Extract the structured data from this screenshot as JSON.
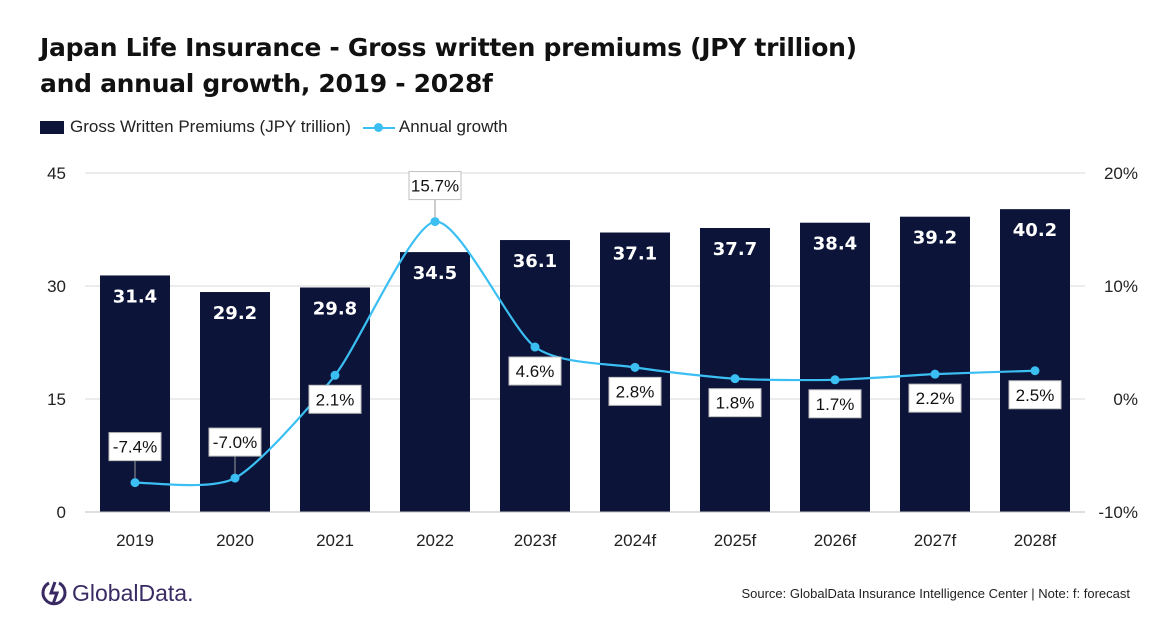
{
  "title_line1": "Japan Life Insurance - Gross written premiums (JPY trillion)",
  "title_line2": "and annual growth, 2019 - 2028f",
  "source": "Source: GlobalData Insurance Intelligence Center | Note: f: forecast",
  "logo_text": "GlobalData.",
  "colors": {
    "bar": "#0c1539",
    "line": "#3bbff3",
    "grid": "#d9d9d9"
  },
  "chart_data": {
    "type": "bar+line",
    "categories": [
      "2019",
      "2020",
      "2021",
      "2022",
      "2023f",
      "2024f",
      "2025f",
      "2026f",
      "2027f",
      "2028f"
    ],
    "series": [
      {
        "name": "Gross Written Premiums (JPY trillion)",
        "type": "bar",
        "axis": "left",
        "values": [
          31.4,
          29.2,
          29.8,
          34.5,
          36.1,
          37.1,
          37.7,
          38.4,
          39.2,
          40.2
        ],
        "labels": [
          "31.4",
          "29.2",
          "29.8",
          "34.5",
          "36.1",
          "37.1",
          "37.7",
          "38.4",
          "39.2",
          "40.2"
        ]
      },
      {
        "name": "Annual growth",
        "type": "line",
        "axis": "right",
        "values": [
          -7.4,
          -7.0,
          2.1,
          15.7,
          4.6,
          2.8,
          1.8,
          1.7,
          2.2,
          2.5
        ],
        "labels": [
          "-7.4%",
          "-7.0%",
          "2.1%",
          "15.7%",
          "4.6%",
          "2.8%",
          "1.8%",
          "1.7%",
          "2.2%",
          "2.5%"
        ]
      }
    ],
    "left_axis": {
      "ylim": [
        0,
        45
      ],
      "ticks": [
        "0",
        "15",
        "30",
        "45"
      ]
    },
    "right_axis": {
      "ylim": [
        -10,
        20
      ],
      "ticks": [
        "-10%",
        "0%",
        "10%",
        "20%"
      ]
    },
    "grid": true,
    "legend": "top-left"
  }
}
